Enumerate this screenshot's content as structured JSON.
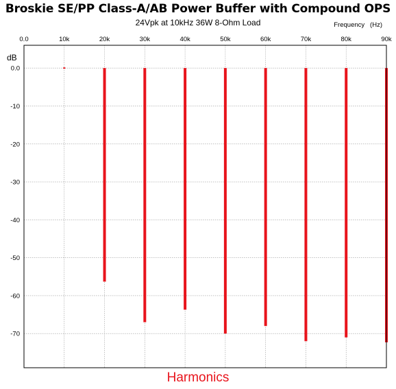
{
  "chart_data": {
    "type": "bar",
    "title": "Broskie SE/PP Class-A/AB Power Buffer with Compound OPS",
    "subtitle": "24Vpk at 10kHz 36W 8-Ohm Load",
    "xlabel": "Frequency   (Hz)",
    "ylabel": "dB",
    "footer": "Harmonics",
    "x_ticks": [
      "0.0",
      "10k",
      "20k",
      "30k",
      "40k",
      "50k",
      "60k",
      "70k",
      "80k",
      "90k"
    ],
    "x_tick_values": [
      0,
      10000,
      20000,
      30000,
      40000,
      50000,
      60000,
      70000,
      80000,
      90000
    ],
    "y_ticks": [
      "0.0",
      "-10",
      "-20",
      "-30",
      "-40",
      "-50",
      "-60",
      "-70"
    ],
    "y_tick_values": [
      0,
      -10,
      -20,
      -30,
      -40,
      -50,
      -60,
      -70
    ],
    "xlim": [
      0,
      90000
    ],
    "ylim": [
      -79,
      6
    ],
    "grid": true,
    "bar_color": "#e8141c",
    "frequencies": [
      10000,
      20000,
      30000,
      40000,
      50000,
      60000,
      70000,
      80000,
      90000
    ],
    "values": [
      0,
      -56.3,
      -67,
      -63.7,
      -70,
      -68,
      -72,
      -71,
      -72.3
    ]
  }
}
